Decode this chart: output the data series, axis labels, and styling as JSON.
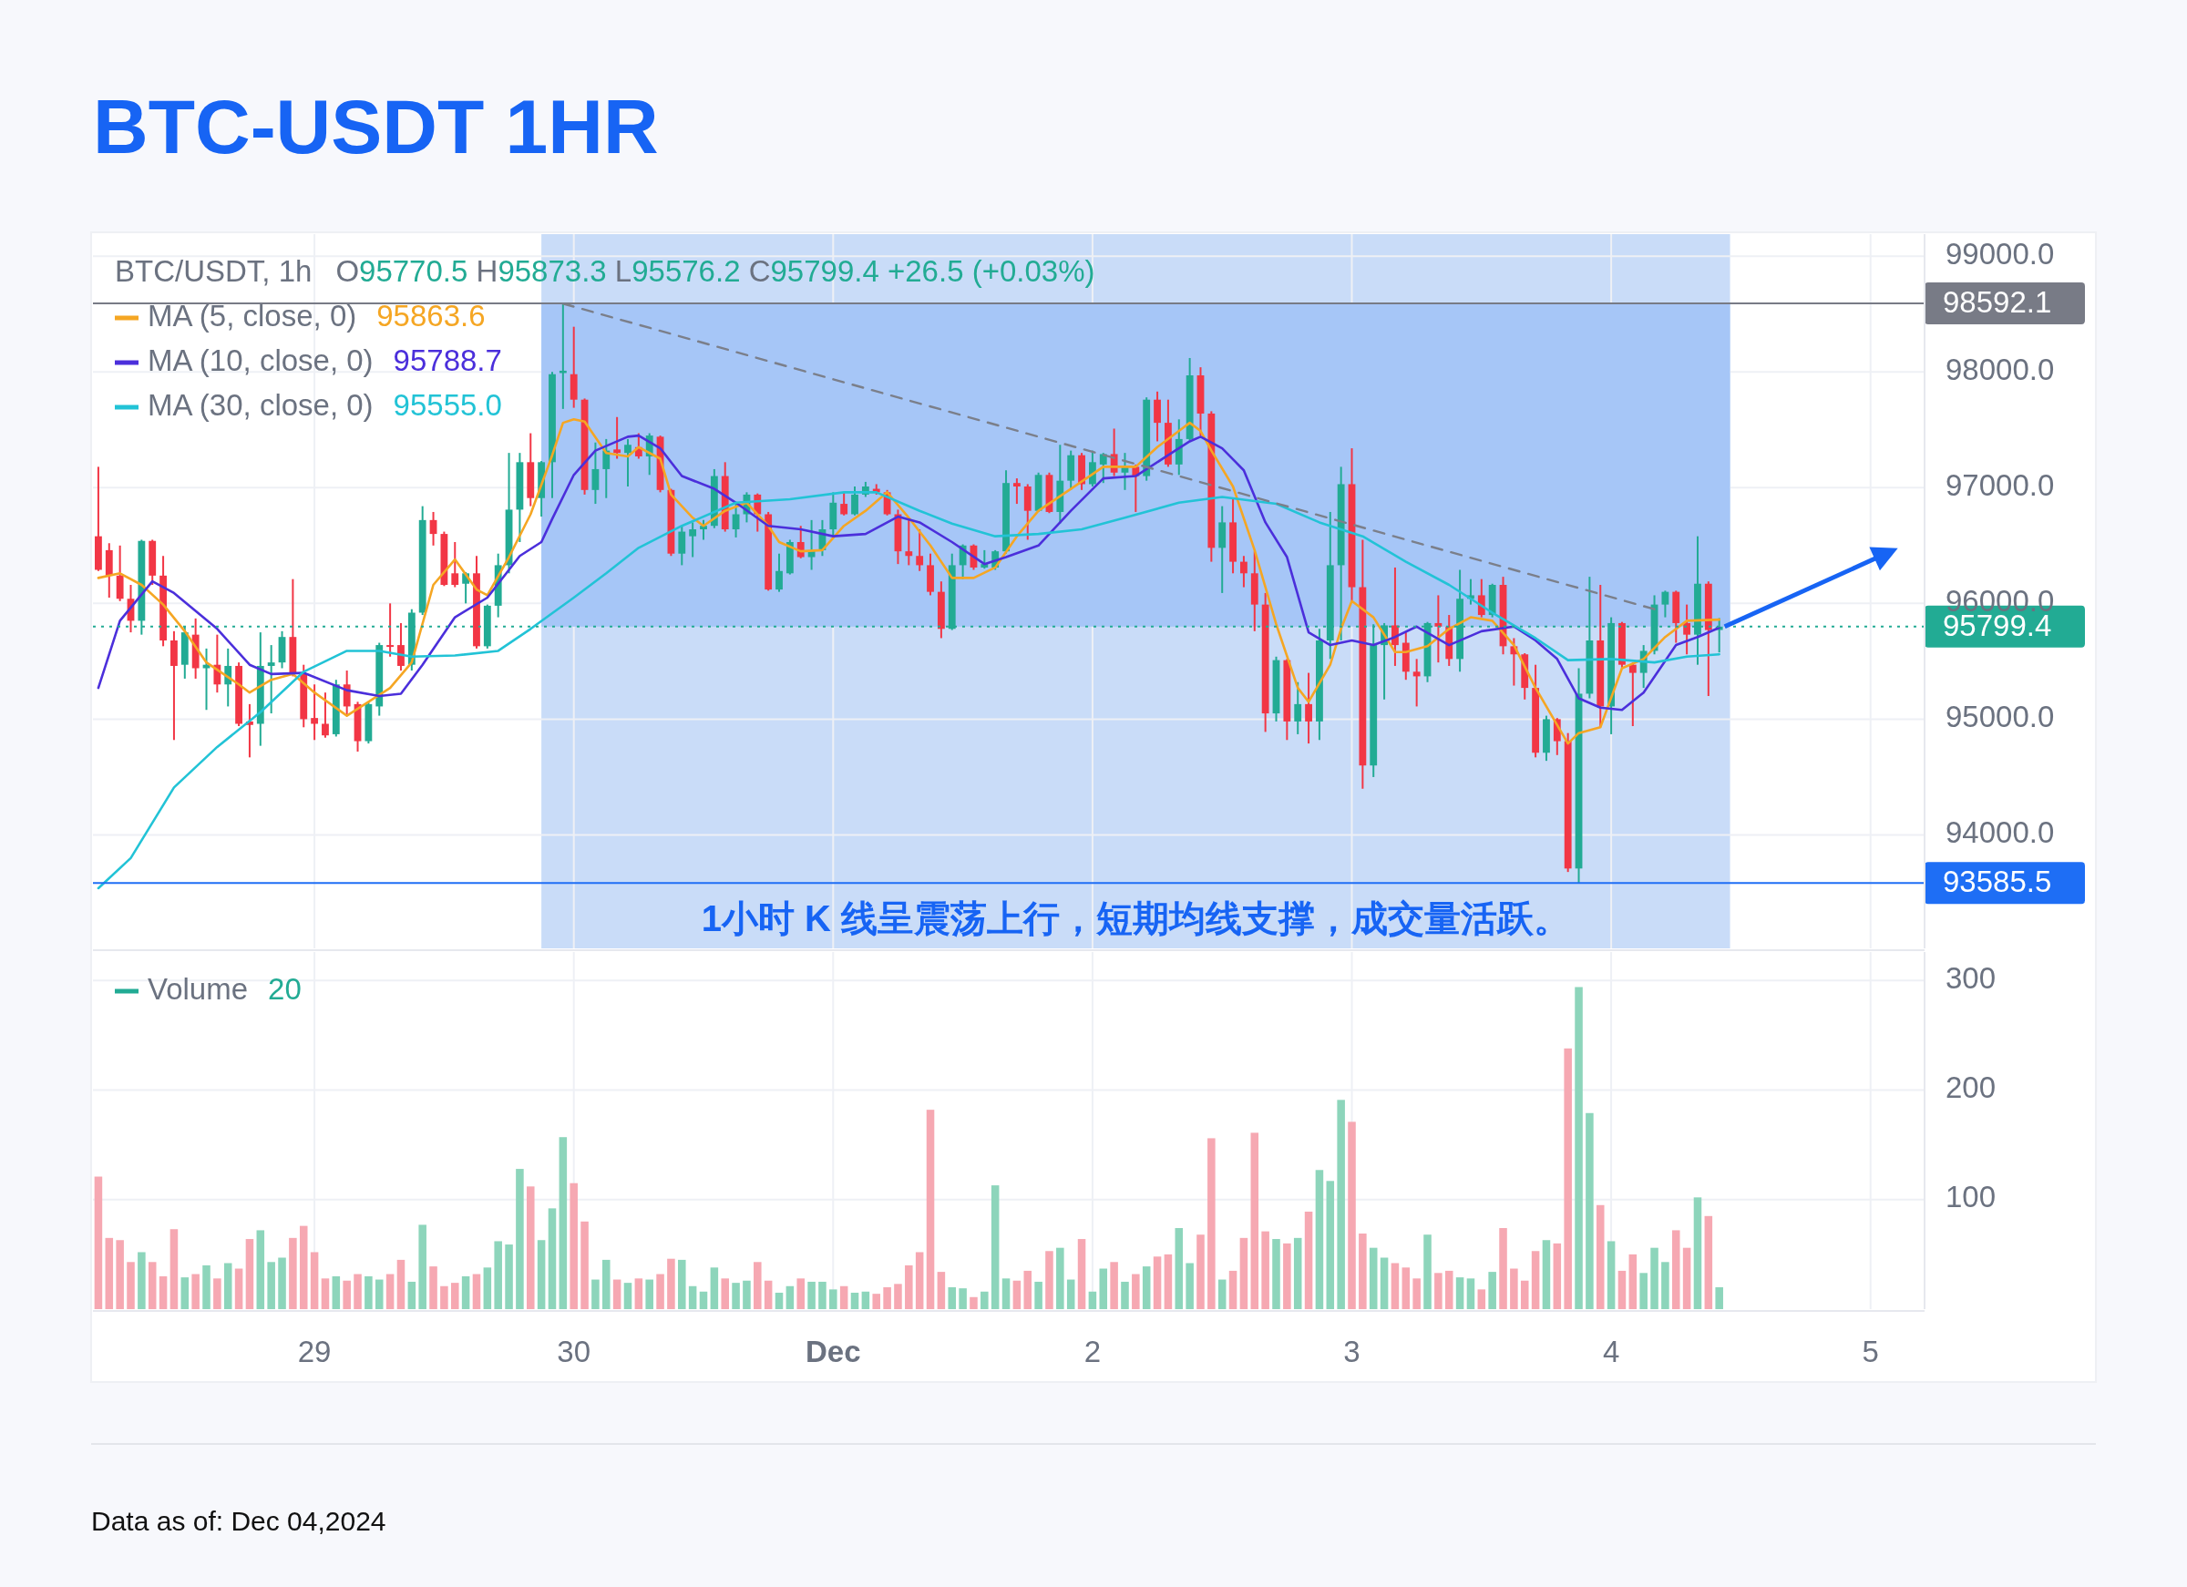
{
  "chart_data": [
    {
      "type": "candlestick",
      "title": "BTC-USDT 1HR",
      "x": [
        "2024-11-28T04:00",
        "2024-11-28T05:00",
        "2024-11-28T06:00",
        "2024-11-28T07:00",
        "2024-11-28T08:00",
        "2024-11-28T09:00",
        "2024-11-28T10:00",
        "2024-11-28T11:00",
        "2024-11-28T12:00",
        "2024-11-28T13:00",
        "2024-11-28T14:00",
        "2024-11-28T15:00",
        "2024-11-28T16:00",
        "2024-11-28T17:00",
        "2024-11-28T18:00",
        "2024-11-28T19:00",
        "2024-11-28T20:00",
        "2024-11-28T21:00",
        "2024-11-28T22:00",
        "2024-11-28T23:00",
        "2024-11-29T00:00",
        "2024-11-29T01:00",
        "2024-11-29T02:00",
        "2024-11-29T03:00",
        "2024-11-29T04:00",
        "2024-11-29T05:00",
        "2024-11-29T06:00",
        "2024-11-29T07:00",
        "2024-11-29T08:00",
        "2024-11-29T09:00",
        "2024-11-29T10:00",
        "2024-11-29T11:00",
        "2024-11-29T12:00",
        "2024-11-29T13:00",
        "2024-11-29T14:00",
        "2024-11-29T15:00",
        "2024-11-29T16:00",
        "2024-11-29T17:00",
        "2024-11-29T18:00",
        "2024-11-29T19:00",
        "2024-11-29T20:00",
        "2024-11-29T21:00",
        "2024-11-29T22:00",
        "2024-11-29T23:00",
        "2024-11-30T00:00",
        "2024-11-30T01:00",
        "2024-11-30T02:00",
        "2024-11-30T03:00",
        "2024-11-30T04:00",
        "2024-11-30T05:00",
        "2024-11-30T06:00",
        "2024-11-30T07:00",
        "2024-11-30T08:00",
        "2024-11-30T09:00",
        "2024-11-30T10:00",
        "2024-11-30T11:00",
        "2024-11-30T12:00",
        "2024-11-30T13:00",
        "2024-11-30T14:00",
        "2024-11-30T15:00",
        "2024-11-30T16:00",
        "2024-11-30T17:00",
        "2024-11-30T18:00",
        "2024-11-30T19:00",
        "2024-11-30T20:00",
        "2024-11-30T21:00",
        "2024-11-30T22:00",
        "2024-11-30T23:00",
        "2024-12-01T00:00",
        "2024-12-01T01:00",
        "2024-12-01T02:00",
        "2024-12-01T03:00",
        "2024-12-01T04:00",
        "2024-12-01T05:00",
        "2024-12-01T06:00",
        "2024-12-01T07:00",
        "2024-12-01T08:00",
        "2024-12-01T09:00",
        "2024-12-01T10:00",
        "2024-12-01T11:00",
        "2024-12-01T12:00",
        "2024-12-01T13:00",
        "2024-12-01T14:00",
        "2024-12-01T15:00",
        "2024-12-01T16:00",
        "2024-12-01T17:00",
        "2024-12-01T18:00",
        "2024-12-01T19:00",
        "2024-12-01T20:00",
        "2024-12-01T21:00",
        "2024-12-01T22:00",
        "2024-12-01T23:00",
        "2024-12-02T00:00",
        "2024-12-02T01:00",
        "2024-12-02T02:00",
        "2024-12-02T03:00",
        "2024-12-02T04:00",
        "2024-12-02T05:00",
        "2024-12-02T06:00",
        "2024-12-02T07:00",
        "2024-12-02T08:00",
        "2024-12-02T09:00",
        "2024-12-02T10:00",
        "2024-12-02T11:00",
        "2024-12-02T12:00",
        "2024-12-02T13:00",
        "2024-12-02T14:00",
        "2024-12-02T15:00",
        "2024-12-02T16:00",
        "2024-12-02T17:00",
        "2024-12-02T18:00",
        "2024-12-02T19:00",
        "2024-12-02T20:00",
        "2024-12-02T21:00",
        "2024-12-02T22:00",
        "2024-12-02T23:00",
        "2024-12-03T00:00",
        "2024-12-03T01:00",
        "2024-12-03T02:00",
        "2024-12-03T03:00",
        "2024-12-03T04:00",
        "2024-12-03T05:00",
        "2024-12-03T06:00",
        "2024-12-03T07:00",
        "2024-12-03T08:00",
        "2024-12-03T09:00",
        "2024-12-03T10:00",
        "2024-12-03T11:00",
        "2024-12-03T12:00",
        "2024-12-03T13:00",
        "2024-12-03T14:00",
        "2024-12-03T15:00",
        "2024-12-03T16:00",
        "2024-12-03T17:00",
        "2024-12-03T18:00",
        "2024-12-03T19:00",
        "2024-12-03T20:00",
        "2024-12-03T21:00",
        "2024-12-03T22:00",
        "2024-12-03T23:00",
        "2024-12-04T00:00",
        "2024-12-04T01:00",
        "2024-12-04T02:00",
        "2024-12-04T03:00",
        "2024-12-04T04:00",
        "2024-12-04T05:00",
        "2024-12-04T06:00",
        "2024-12-04T07:00",
        "2024-12-04T08:00",
        "2024-12-04T09:00",
        "2024-12-04T10:00"
      ],
      "ohlc": [
        [
          96580,
          97180,
          96280,
          96290
        ],
        [
          96460,
          96520,
          96050,
          96240
        ],
        [
          96240,
          96500,
          96020,
          96040
        ],
        [
          96040,
          96160,
          95750,
          95850
        ],
        [
          95850,
          96550,
          95730,
          96540
        ],
        [
          96540,
          96550,
          96160,
          96240
        ],
        [
          96240,
          96410,
          95630,
          95680
        ],
        [
          95680,
          95760,
          94820,
          95460
        ],
        [
          95470,
          95800,
          95350,
          95750
        ],
        [
          95730,
          95870,
          95350,
          95440
        ],
        [
          95440,
          95610,
          95080,
          95470
        ],
        [
          95470,
          95730,
          95230,
          95300
        ],
        [
          95300,
          95610,
          95110,
          95460
        ],
        [
          95460,
          95490,
          94940,
          94960
        ],
        [
          94980,
          95130,
          94670,
          94950
        ],
        [
          94960,
          95750,
          94770,
          95460
        ],
        [
          95460,
          95640,
          95050,
          95490
        ],
        [
          95490,
          95760,
          95440,
          95710
        ],
        [
          95710,
          96210,
          95370,
          95390
        ],
        [
          95390,
          95470,
          94930,
          95000
        ],
        [
          95010,
          95300,
          94820,
          94960
        ],
        [
          94960,
          95230,
          94840,
          94860
        ],
        [
          94870,
          95340,
          94850,
          95300
        ],
        [
          95300,
          95420,
          95030,
          95110
        ],
        [
          95130,
          95150,
          94720,
          94810
        ],
        [
          94810,
          95150,
          94790,
          95130
        ],
        [
          95110,
          95660,
          95030,
          95640
        ],
        [
          95640,
          96000,
          95540,
          95630
        ],
        [
          95640,
          95830,
          95420,
          95460
        ],
        [
          95470,
          95950,
          95420,
          95920
        ],
        [
          95920,
          96840,
          95900,
          96720
        ],
        [
          96720,
          96790,
          96500,
          96600
        ],
        [
          96600,
          96620,
          96150,
          96160
        ],
        [
          96260,
          96530,
          96140,
          96160
        ],
        [
          96170,
          96270,
          96000,
          96260
        ],
        [
          96260,
          96410,
          95610,
          95630
        ],
        [
          95630,
          95990,
          95610,
          95980
        ],
        [
          95980,
          96430,
          95880,
          96330
        ],
        [
          96330,
          97300,
          96260,
          96810
        ],
        [
          96810,
          97300,
          96530,
          97220
        ],
        [
          97220,
          97470,
          96840,
          96910
        ],
        [
          96910,
          97230,
          96750,
          97220
        ],
        [
          97220,
          98000,
          96910,
          97980
        ],
        [
          97990,
          98592.1,
          97680,
          98010
        ],
        [
          97980,
          98390,
          97690,
          97760
        ],
        [
          97760,
          97770,
          96940,
          96980
        ],
        [
          96980,
          97390,
          96860,
          97160
        ],
        [
          97160,
          97420,
          96910,
          97320
        ],
        [
          97330,
          97610,
          97250,
          97300
        ],
        [
          97300,
          97420,
          97010,
          97370
        ],
        [
          97350,
          97470,
          97250,
          97270
        ],
        [
          97270,
          97470,
          97110,
          97450
        ],
        [
          97440,
          97450,
          96960,
          96980
        ],
        [
          96980,
          96990,
          96410,
          96430
        ],
        [
          96430,
          96670,
          96330,
          96620
        ],
        [
          96580,
          96700,
          96400,
          96640
        ],
        [
          96640,
          96720,
          96550,
          96670
        ],
        [
          96670,
          97160,
          96650,
          97100
        ],
        [
          97100,
          97220,
          96620,
          96640
        ],
        [
          96640,
          96870,
          96570,
          96770
        ],
        [
          96770,
          96960,
          96700,
          96940
        ],
        [
          96940,
          96950,
          96620,
          96770
        ],
        [
          96770,
          96790,
          96110,
          96120
        ],
        [
          96120,
          96430,
          96100,
          96280
        ],
        [
          96260,
          96550,
          96250,
          96530
        ],
        [
          96530,
          96670,
          96390,
          96400
        ],
        [
          96400,
          96720,
          96290,
          96460
        ],
        [
          96460,
          96720,
          96410,
          96640
        ],
        [
          96640,
          96960,
          96580,
          96870
        ],
        [
          96860,
          96960,
          96760,
          96770
        ],
        [
          96770,
          97010,
          96760,
          96940
        ],
        [
          96940,
          97050,
          96920,
          97010
        ],
        [
          96990,
          97030,
          96940,
          96960
        ],
        [
          96960,
          96980,
          96760,
          96770
        ],
        [
          96770,
          96810,
          96340,
          96450
        ],
        [
          96450,
          96720,
          96330,
          96410
        ],
        [
          96410,
          96640,
          96280,
          96330
        ],
        [
          96330,
          96430,
          96070,
          96100
        ],
        [
          96100,
          96190,
          95700,
          95780
        ],
        [
          95780,
          96430,
          95770,
          96330
        ],
        [
          96330,
          96510,
          96210,
          96500
        ],
        [
          96500,
          96510,
          96290,
          96310
        ],
        [
          96310,
          96460,
          96300,
          96340
        ],
        [
          96310,
          96460,
          96290,
          96450
        ],
        [
          96450,
          97150,
          96430,
          97040
        ],
        [
          97040,
          97080,
          96860,
          97010
        ],
        [
          97010,
          97030,
          96550,
          96800
        ],
        [
          96800,
          97130,
          96790,
          97110
        ],
        [
          97110,
          97130,
          96780,
          96790
        ],
        [
          96790,
          97370,
          96690,
          97060
        ],
        [
          97060,
          97320,
          96980,
          97280
        ],
        [
          97280,
          97300,
          96980,
          97030
        ],
        [
          97030,
          97320,
          97010,
          97220
        ],
        [
          97200,
          97300,
          97040,
          97290
        ],
        [
          97290,
          97510,
          97100,
          97130
        ],
        [
          97130,
          97300,
          96980,
          97180
        ],
        [
          97180,
          97200,
          96790,
          97100
        ],
        [
          97100,
          97780,
          97060,
          97760
        ],
        [
          97760,
          97830,
          97400,
          97560
        ],
        [
          97560,
          97760,
          97180,
          97200
        ],
        [
          97200,
          97590,
          97110,
          97420
        ],
        [
          97420,
          98120,
          97410,
          97970
        ],
        [
          97970,
          98040,
          97450,
          97640
        ],
        [
          97640,
          97660,
          96360,
          96480
        ],
        [
          96480,
          96840,
          96090,
          96700
        ],
        [
          96700,
          96910,
          96260,
          96360
        ],
        [
          96360,
          96410,
          96140,
          96260
        ],
        [
          96260,
          96450,
          95760,
          95990
        ],
        [
          95990,
          96090,
          94890,
          95050
        ],
        [
          95050,
          95540,
          94980,
          95510
        ],
        [
          95510,
          95520,
          94820,
          94980
        ],
        [
          94980,
          95320,
          94870,
          95130
        ],
        [
          95130,
          95400,
          94790,
          94980
        ],
        [
          94980,
          95780,
          94820,
          95680
        ],
        [
          95680,
          96790,
          95520,
          96330
        ],
        [
          96330,
          97180,
          95680,
          97030
        ],
        [
          97030,
          97340,
          96020,
          96140
        ],
        [
          96140,
          96550,
          94400,
          94600
        ],
        [
          94600,
          95820,
          94500,
          95640
        ],
        [
          95640,
          95830,
          95170,
          95810
        ],
        [
          95810,
          96310,
          95460,
          95640
        ],
        [
          95660,
          95750,
          95340,
          95410
        ],
        [
          95410,
          95520,
          95110,
          95370
        ],
        [
          95370,
          95840,
          95320,
          95830
        ],
        [
          95830,
          96070,
          95490,
          95800
        ],
        [
          95800,
          95900,
          95460,
          95520
        ],
        [
          95520,
          96290,
          95410,
          96040
        ],
        [
          96040,
          96210,
          95990,
          96070
        ],
        [
          96070,
          96210,
          95880,
          95900
        ],
        [
          95900,
          96170,
          95880,
          96160
        ],
        [
          96160,
          96230,
          95560,
          95630
        ],
        [
          95630,
          95700,
          95290,
          95560
        ],
        [
          95560,
          95570,
          95170,
          95270
        ],
        [
          95270,
          95470,
          94670,
          94710
        ],
        [
          94710,
          95030,
          94640,
          95000
        ],
        [
          95000,
          95010,
          94690,
          94810
        ],
        [
          94810,
          94880,
          93680,
          93710
        ],
        [
          93710,
          95440,
          93585.5,
          95220
        ],
        [
          95220,
          96230,
          95180,
          95680
        ],
        [
          95680,
          96160,
          94930,
          95110
        ],
        [
          95110,
          95880,
          94870,
          95830
        ],
        [
          95830,
          95840,
          95440,
          95470
        ],
        [
          95470,
          95490,
          94940,
          95400
        ],
        [
          95400,
          95640,
          95270,
          95590
        ],
        [
          95590,
          96070,
          95560,
          95990
        ],
        [
          95990,
          96110,
          95880,
          96100
        ],
        [
          96100,
          96110,
          95660,
          95830
        ],
        [
          95830,
          95990,
          95560,
          95730
        ],
        [
          95730,
          96580,
          95470,
          96170
        ],
        [
          96170,
          96190,
          95200,
          95770
        ],
        [
          95770.5,
          95873.3,
          95576.2,
          95799.4
        ]
      ],
      "series": [
        {
          "name": "MA (5, close, 0)",
          "type": "line",
          "color": "#f5a623",
          "x": [
            "2024-11-28T04:00",
            "2024-11-28T06:00",
            "2024-11-28T08:00",
            "2024-11-28T10:00",
            "2024-11-28T12:00",
            "2024-11-28T14:00",
            "2024-11-28T17:00",
            "2024-11-28T18:00",
            "2024-11-28T20:00",
            "2024-11-28T22:00",
            "2024-11-29T00:00",
            "2024-11-29T03:00",
            "2024-11-29T05:00",
            "2024-11-29T07:00",
            "2024-11-29T09:00",
            "2024-11-29T11:00",
            "2024-11-29T13:00",
            "2024-11-29T15:00",
            "2024-11-29T16:00",
            "2024-11-29T18:00",
            "2024-11-29T20:00",
            "2024-11-29T22:00",
            "2024-11-29T23:00",
            "2024-11-30T00:00",
            "2024-11-30T01:00",
            "2024-11-30T03:00",
            "2024-11-30T05:00",
            "2024-11-30T06:00",
            "2024-11-30T08:00",
            "2024-11-30T09:00",
            "2024-11-30T11:00",
            "2024-11-30T12:00",
            "2024-11-30T14:00",
            "2024-11-30T16:00",
            "2024-11-30T18:00",
            "2024-11-30T19:00",
            "2024-11-30T21:00",
            "2024-11-30T23:00",
            "2024-12-01T01:00",
            "2024-12-01T03:00",
            "2024-12-01T05:00",
            "2024-12-01T07:00",
            "2024-12-01T09:00",
            "2024-12-01T11:00",
            "2024-12-01T13:00",
            "2024-12-01T15:00",
            "2024-12-01T17:00",
            "2024-12-01T19:00",
            "2024-12-01T22:00",
            "2024-12-02T01:00",
            "2024-12-02T04:00",
            "2024-12-02T06:00",
            "2024-12-02T08:00",
            "2024-12-02T09:00",
            "2024-12-02T10:00",
            "2024-12-02T11:00",
            "2024-12-02T13:00",
            "2024-12-02T15:00",
            "2024-12-02T17:00",
            "2024-12-02T19:00",
            "2024-12-02T20:00",
            "2024-12-02T22:00",
            "2024-12-02T23:00",
            "2024-12-03T00:00",
            "2024-12-03T02:00",
            "2024-12-03T04:00",
            "2024-12-03T05:00",
            "2024-12-03T07:00",
            "2024-12-03T09:00",
            "2024-12-03T11:00",
            "2024-12-03T13:00",
            "2024-12-03T15:00",
            "2024-12-03T17:00",
            "2024-12-03T20:00",
            "2024-12-03T21:00",
            "2024-12-03T23:00",
            "2024-12-04T01:00",
            "2024-12-04T03:00",
            "2024-12-04T05:00",
            "2024-12-04T07:00",
            "2024-12-04T10:00"
          ],
          "values": [
            96220,
            96260,
            96160,
            95990,
            95760,
            95490,
            95300,
            95230,
            95340,
            95390,
            95230,
            95030,
            95150,
            95270,
            95490,
            96160,
            96380,
            96120,
            96070,
            96400,
            96770,
            97280,
            97560,
            97590,
            97570,
            97300,
            97270,
            97350,
            97250,
            96940,
            96740,
            96670,
            96800,
            96870,
            96670,
            96530,
            96450,
            96460,
            96670,
            96800,
            96960,
            96740,
            96500,
            96220,
            96220,
            96310,
            96580,
            96800,
            96990,
            97180,
            97180,
            97350,
            97490,
            97560,
            97490,
            97320,
            97010,
            96460,
            95820,
            95270,
            95150,
            95470,
            95780,
            96020,
            95880,
            95580,
            95580,
            95630,
            95780,
            95880,
            95850,
            95640,
            95270,
            94790,
            94880,
            94930,
            95440,
            95520,
            95710,
            95850,
            95860
          ]
        },
        {
          "name": "MA (10, close, 0)",
          "type": "line",
          "color": "#4b2fdb",
          "x": [
            "2024-11-28T04:00",
            "2024-11-28T06:00",
            "2024-11-28T09:00",
            "2024-11-28T11:00",
            "2024-11-28T15:00",
            "2024-11-28T18:00",
            "2024-11-28T20:00",
            "2024-11-28T23:00",
            "2024-11-29T03:00",
            "2024-11-29T06:00",
            "2024-11-29T08:00",
            "2024-11-29T10:00",
            "2024-11-29T13:00",
            "2024-11-29T16:00",
            "2024-11-29T19:00",
            "2024-11-29T21:00",
            "2024-11-29T22:00",
            "2024-11-30T00:00",
            "2024-11-30T02:00",
            "2024-11-30T05:00",
            "2024-11-30T06:00",
            "2024-11-30T08:00",
            "2024-11-30T10:00",
            "2024-11-30T13:00",
            "2024-11-30T15:00",
            "2024-11-30T18:00",
            "2024-11-30T21:00",
            "2024-12-01T00:00",
            "2024-12-01T03:00",
            "2024-12-01T06:00",
            "2024-12-01T08:00",
            "2024-12-01T11:00",
            "2024-12-01T14:00",
            "2024-12-01T16:00",
            "2024-12-01T19:00",
            "2024-12-01T22:00",
            "2024-12-02T01:00",
            "2024-12-02T04:00",
            "2024-12-02T07:00",
            "2024-12-02T09:00",
            "2024-12-02T10:00",
            "2024-12-02T12:00",
            "2024-12-02T14:00",
            "2024-12-02T16:00",
            "2024-12-02T18:00",
            "2024-12-02T20:00",
            "2024-12-02T22:00",
            "2024-12-03T00:00",
            "2024-12-03T02:00",
            "2024-12-03T04:00",
            "2024-12-03T06:00",
            "2024-12-03T09:00",
            "2024-12-03T12:00",
            "2024-12-03T15:00",
            "2024-12-03T17:00",
            "2024-12-03T19:00",
            "2024-12-03T21:00",
            "2024-12-03T23:00",
            "2024-12-04T01:00",
            "2024-12-04T03:00",
            "2024-12-04T06:00",
            "2024-12-04T08:00",
            "2024-12-04T10:00"
          ],
          "values": [
            95270,
            95850,
            96190,
            96090,
            95780,
            95470,
            95390,
            95400,
            95250,
            95200,
            95220,
            95470,
            95880,
            96050,
            96410,
            96530,
            96730,
            97110,
            97320,
            97440,
            97450,
            97340,
            97100,
            96990,
            96870,
            96670,
            96640,
            96580,
            96600,
            96750,
            96700,
            96530,
            96340,
            96400,
            96500,
            96800,
            97080,
            97100,
            97280,
            97400,
            97440,
            97340,
            97150,
            96700,
            96400,
            95750,
            95640,
            95680,
            95640,
            95710,
            95800,
            95640,
            95760,
            95800,
            95680,
            95520,
            95180,
            95100,
            95080,
            95230,
            95640,
            95710,
            95790
          ]
        },
        {
          "name": "MA (30, close, 0)",
          "type": "line",
          "color": "#22c3d6",
          "x": [
            "2024-11-28T04:00",
            "2024-11-28T07:00",
            "2024-11-28T11:00",
            "2024-11-28T15:00",
            "2024-11-28T19:00",
            "2024-11-28T23:00",
            "2024-11-29T03:00",
            "2024-11-29T06:00",
            "2024-11-29T09:00",
            "2024-11-29T13:00",
            "2024-11-29T17:00",
            "2024-11-29T20:00",
            "2024-11-30T00:00",
            "2024-11-30T03:00",
            "2024-11-30T06:00",
            "2024-11-30T10:00",
            "2024-11-30T15:00",
            "2024-11-30T20:00",
            "2024-12-01T01:00",
            "2024-12-01T04:00",
            "2024-12-01T08:00",
            "2024-12-01T11:00",
            "2024-12-01T15:00",
            "2024-12-01T19:00",
            "2024-12-01T23:00",
            "2024-12-02T03:00",
            "2024-12-02T08:00",
            "2024-12-02T12:00",
            "2024-12-02T17:00",
            "2024-12-02T21:00",
            "2024-12-03T01:00",
            "2024-12-03T05:00",
            "2024-12-03T09:00",
            "2024-12-03T13:00",
            "2024-12-03T17:00",
            "2024-12-03T20:00",
            "2024-12-04T00:00",
            "2024-12-04T04:00",
            "2024-12-04T07:00",
            "2024-12-04T10:00"
          ],
          "values": [
            93540,
            93800,
            94410,
            94760,
            95060,
            95410,
            95590,
            95590,
            95540,
            95550,
            95590,
            95780,
            96050,
            96260,
            96480,
            96670,
            96870,
            96900,
            96960,
            96960,
            96800,
            96690,
            96580,
            96600,
            96640,
            96740,
            96870,
            96920,
            96860,
            96700,
            96580,
            96360,
            96160,
            95920,
            95700,
            95510,
            95520,
            95490,
            95540,
            95560
          ]
        },
        {
          "type": "line",
          "color": "#7b7f8a",
          "line_style": "dashed",
          "x": [
            "2024-11-29T23:00",
            "2024-12-04T04:00"
          ],
          "values": [
            98590,
            95950
          ]
        }
      ],
      "xlim": [
        "2024-11-28T03:30",
        "2024-12-05T05:00"
      ],
      "ylim": [
        93020,
        99190
      ],
      "xticks": [
        {
          "value": "2024-11-29",
          "label": null
        },
        {
          "value": "2024-11-30",
          "label": null
        },
        {
          "value": "2024-12-01",
          "label": null
        },
        {
          "value": "2024-12-02",
          "label": null
        },
        {
          "value": "2024-12-03",
          "label": null
        },
        {
          "value": "2024-12-04",
          "label": null
        },
        {
          "value": "2024-12-05",
          "label": null
        }
      ],
      "yticks": [
        {
          "value": 94000,
          "label": "94000.0"
        },
        {
          "value": 95000,
          "label": "95000.0"
        },
        {
          "value": 96000,
          "label": "96000.0"
        },
        {
          "value": 97000,
          "label": "97000.0"
        },
        {
          "value": 98000,
          "label": "98000.0"
        },
        {
          "value": 99000,
          "label": "99000.0"
        }
      ],
      "tick_labels": "y",
      "grid": true,
      "legend": "top left",
      "ref_lines": [
        {
          "axis": "y",
          "value": 98592.1,
          "label": "98592.1",
          "color": "#787b86",
          "line_style": "solid"
        },
        {
          "axis": "y",
          "value": 95799.4,
          "label": "95799.4",
          "color": "#22ab94",
          "line_style": "dotted"
        },
        {
          "axis": "y",
          "value": 93585.5,
          "label": "93585.5",
          "color": "#1e6ef5",
          "line_style": "solid"
        }
      ],
      "bands": [
        {
          "axis": "x",
          "from": "2024-11-29T21:00",
          "to": "2024-12-04T11:00",
          "color": "#c9dcf8"
        },
        {
          "axis": "y",
          "from": 95799.4,
          "to": 98592.1,
          "color": "#a6c6f7"
        }
      ],
      "annotations": [
        "BTC/USDT, 1h",
        "O95770.5  H95873.3  L95576.2  C95799.4  +26.5 (+0.03%)",
        "1小时 K 线呈震荡上行，短期均线支撑，成交量活跃。",
        "95863.6",
        "95788.7",
        "95555.0"
      ]
    },
    {
      "type": "bar",
      "x": [
        "2024-11-28T04:00",
        "2024-11-28T05:00",
        "2024-11-28T06:00",
        "2024-11-28T07:00",
        "2024-11-28T08:00",
        "2024-11-28T09:00",
        "2024-11-28T10:00",
        "2024-11-28T11:00",
        "2024-11-28T12:00",
        "2024-11-28T13:00",
        "2024-11-28T14:00",
        "2024-11-28T15:00",
        "2024-11-28T16:00",
        "2024-11-28T17:00",
        "2024-11-28T18:00",
        "2024-11-28T19:00",
        "2024-11-28T20:00",
        "2024-11-28T21:00",
        "2024-11-28T22:00",
        "2024-11-28T23:00",
        "2024-11-29T00:00",
        "2024-11-29T01:00",
        "2024-11-29T02:00",
        "2024-11-29T03:00",
        "2024-11-29T04:00",
        "2024-11-29T05:00",
        "2024-11-29T06:00",
        "2024-11-29T07:00",
        "2024-11-29T08:00",
        "2024-11-29T09:00",
        "2024-11-29T10:00",
        "2024-11-29T11:00",
        "2024-11-29T12:00",
        "2024-11-29T13:00",
        "2024-11-29T14:00",
        "2024-11-29T15:00",
        "2024-11-29T16:00",
        "2024-11-29T17:00",
        "2024-11-29T18:00",
        "2024-11-29T19:00",
        "2024-11-29T20:00",
        "2024-11-29T21:00",
        "2024-11-29T22:00",
        "2024-11-29T23:00",
        "2024-11-30T00:00",
        "2024-11-30T01:00",
        "2024-11-30T02:00",
        "2024-11-30T03:00",
        "2024-11-30T04:00",
        "2024-11-30T05:00",
        "2024-11-30T06:00",
        "2024-11-30T07:00",
        "2024-11-30T08:00",
        "2024-11-30T09:00",
        "2024-11-30T10:00",
        "2024-11-30T11:00",
        "2024-11-30T12:00",
        "2024-11-30T13:00",
        "2024-11-30T14:00",
        "2024-11-30T15:00",
        "2024-11-30T16:00",
        "2024-11-30T17:00",
        "2024-11-30T18:00",
        "2024-11-30T19:00",
        "2024-11-30T20:00",
        "2024-11-30T21:00",
        "2024-11-30T22:00",
        "2024-11-30T23:00",
        "2024-12-01T00:00",
        "2024-12-01T01:00",
        "2024-12-01T02:00",
        "2024-12-01T03:00",
        "2024-12-01T04:00",
        "2024-12-01T05:00",
        "2024-12-01T06:00",
        "2024-12-01T07:00",
        "2024-12-01T08:00",
        "2024-12-01T09:00",
        "2024-12-01T10:00",
        "2024-12-01T11:00",
        "2024-12-01T12:00",
        "2024-12-01T13:00",
        "2024-12-01T14:00",
        "2024-12-01T15:00",
        "2024-12-01T16:00",
        "2024-12-01T17:00",
        "2024-12-01T18:00",
        "2024-12-01T19:00",
        "2024-12-01T20:00",
        "2024-12-01T21:00",
        "2024-12-01T22:00",
        "2024-12-01T23:00",
        "2024-12-02T00:00",
        "2024-12-02T01:00",
        "2024-12-02T02:00",
        "2024-12-02T03:00",
        "2024-12-02T04:00",
        "2024-12-02T05:00",
        "2024-12-02T06:00",
        "2024-12-02T07:00",
        "2024-12-02T08:00",
        "2024-12-02T09:00",
        "2024-12-02T10:00",
        "2024-12-02T11:00",
        "2024-12-02T12:00",
        "2024-12-02T13:00",
        "2024-12-02T14:00",
        "2024-12-02T15:00",
        "2024-12-02T16:00",
        "2024-12-02T17:00",
        "2024-12-02T18:00",
        "2024-12-02T19:00",
        "2024-12-02T20:00",
        "2024-12-02T21:00",
        "2024-12-02T22:00",
        "2024-12-02T23:00",
        "2024-12-03T00:00",
        "2024-12-03T01:00",
        "2024-12-03T02:00",
        "2024-12-03T03:00",
        "2024-12-03T04:00",
        "2024-12-03T05:00",
        "2024-12-03T06:00",
        "2024-12-03T07:00",
        "2024-12-03T08:00",
        "2024-12-03T09:00",
        "2024-12-03T10:00",
        "2024-12-03T11:00",
        "2024-12-03T12:00",
        "2024-12-03T13:00",
        "2024-12-03T14:00",
        "2024-12-03T15:00",
        "2024-12-03T16:00",
        "2024-12-03T17:00",
        "2024-12-03T18:00",
        "2024-12-03T19:00",
        "2024-12-03T20:00",
        "2024-12-03T21:00",
        "2024-12-03T22:00",
        "2024-12-03T23:00",
        "2024-12-04T00:00",
        "2024-12-04T01:00",
        "2024-12-04T02:00",
        "2024-12-04T03:00",
        "2024-12-04T04:00",
        "2024-12-04T05:00",
        "2024-12-04T06:00",
        "2024-12-04T07:00",
        "2024-12-04T08:00",
        "2024-12-04T09:00",
        "2024-12-04T10:00"
      ],
      "series": [
        {
          "name": "Volume",
          "values": [
            121,
            65,
            63,
            43,
            52,
            43,
            30,
            73,
            29,
            32,
            40,
            28,
            42,
            37,
            64,
            72,
            43,
            47,
            65,
            76,
            52,
            28,
            30,
            26,
            32,
            30,
            27,
            32,
            45,
            25,
            77,
            39,
            21,
            24,
            30,
            32,
            38,
            62,
            59,
            128,
            112,
            63,
            92,
            157,
            115,
            80,
            27,
            45,
            27,
            24,
            28,
            27,
            32,
            46,
            45,
            21,
            16,
            38,
            28,
            24,
            26,
            43,
            26,
            15,
            21,
            28,
            25,
            25,
            18,
            21,
            15,
            16,
            14,
            20,
            23,
            40,
            52,
            182,
            34,
            20,
            19,
            11,
            16,
            113,
            28,
            26,
            35,
            25,
            53,
            56,
            27,
            64,
            16,
            37,
            43,
            25,
            32,
            39,
            48,
            50,
            74,
            42,
            68,
            156,
            27,
            35,
            65,
            161,
            71,
            64,
            60,
            65,
            89,
            127,
            117,
            191,
            171,
            69,
            56,
            47,
            42,
            38,
            28,
            68,
            33,
            35,
            29,
            28,
            18,
            34,
            74,
            37,
            26,
            53,
            63,
            60,
            238,
            294,
            179,
            95,
            62,
            35,
            50,
            33,
            56,
            43,
            72,
            56,
            102,
            85,
            20
          ]
        }
      ],
      "xlim": [
        "2024-11-28T03:30",
        "2024-12-05T05:00"
      ],
      "ylim": [
        0,
        326
      ],
      "xticks": [
        {
          "value": "2024-11-29",
          "label": "29"
        },
        {
          "value": "2024-11-30",
          "label": "30"
        },
        {
          "value": "2024-12-01",
          "label": "Dec"
        },
        {
          "value": "2024-12-02",
          "label": "2"
        },
        {
          "value": "2024-12-03",
          "label": "3"
        },
        {
          "value": "2024-12-04",
          "label": "4"
        },
        {
          "value": "2024-12-05",
          "label": "5"
        }
      ],
      "yticks": [
        100,
        200,
        300
      ],
      "grid": true,
      "legend": "top left",
      "annotations": [
        "Data as of: Dec 04,2024",
        "20"
      ]
    }
  ]
}
